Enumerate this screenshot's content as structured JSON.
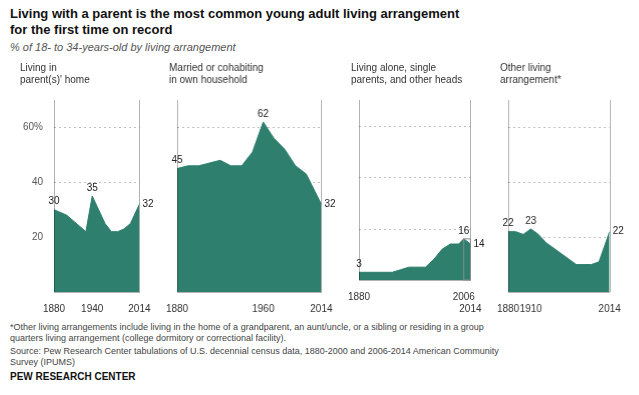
{
  "title": "Living with a parent is the most common young adult living arrangement\nfor the first time on record",
  "subtitle": "% of 18- to 34-years-old by living arrangement",
  "annotations": [
    "*Other living arrangements include living in the home of a grandparent, an aunt/uncle, or a sibling or residing in a group\nquarters living arrangement (college dormitory or correctional facility).",
    "Source: Pew Research Center tabulations of U.S. decennial census data, 1880-2000 and 2006-2014 American Community\nSurvey (IPUMS)",
    "PEW RESEARCH CENTER"
  ],
  "chart_data": [
    {
      "type": "area",
      "title": "Living in\nparent(s)' home",
      "color": "#2e7f6e",
      "grid": true,
      "x": [
        1880,
        1900,
        1910,
        1920,
        1930,
        1940,
        1950,
        1960,
        1970,
        1980,
        1990,
        2000,
        2014
      ],
      "values": [
        30,
        28,
        26,
        24,
        22,
        35,
        30,
        25,
        22,
        22,
        23,
        25,
        32
      ],
      "value_labels": [
        "30",
        null,
        null,
        null,
        null,
        "35",
        null,
        null,
        null,
        null,
        null,
        null,
        "32"
      ],
      "xlim": [
        1880,
        2014
      ],
      "xticks": [
        1880,
        1940,
        2014
      ],
      "ylim": [
        0,
        70
      ],
      "yticks": [
        20,
        40,
        {
          "value": 60,
          "label": "60%"
        }
      ]
    },
    {
      "type": "area",
      "title": "Married or cohabiting\nin own household",
      "color": "#2e7f6e",
      "grid": true,
      "x": [
        1880,
        1890,
        1900,
        1910,
        1920,
        1930,
        1940,
        1950,
        1960,
        1970,
        1980,
        1990,
        2000,
        2014
      ],
      "values": [
        45,
        46,
        46,
        47,
        48,
        46,
        46,
        51,
        62,
        56,
        52,
        46,
        43,
        32
      ],
      "value_labels": [
        "45",
        null,
        null,
        null,
        null,
        null,
        null,
        null,
        "62",
        null,
        null,
        null,
        null,
        "32"
      ],
      "xlim": [
        1880,
        2014
      ],
      "xticks": [
        1880,
        1960,
        2014
      ],
      "ylim": [
        0,
        70
      ],
      "yticks": [
        20,
        40,
        {
          "value": 60,
          "label": "60%"
        }
      ],
      "tick_labels": "x"
    },
    {
      "type": "area",
      "title": "Living alone, single\nparents, and other heads",
      "color": "#2e7f6e",
      "grid": true,
      "x": [
        1880,
        1890,
        1900,
        1910,
        1920,
        1930,
        1940,
        1950,
        1960,
        1970,
        1980,
        1990,
        2000,
        2006,
        2014
      ],
      "values": [
        3,
        3,
        3,
        3,
        3,
        4,
        5,
        5,
        5,
        8,
        12,
        14,
        14,
        16,
        14
      ],
      "value_labels": [
        "3",
        null,
        null,
        null,
        null,
        null,
        null,
        null,
        null,
        null,
        null,
        null,
        null,
        "16",
        "14"
      ],
      "bracket": {
        "x0": 2006,
        "x1": 2014,
        "y": 16
      },
      "xlim": [
        1880,
        2014
      ],
      "xticks": [
        1880,
        2006,
        2014
      ],
      "ylim": [
        0,
        70
      ],
      "yticks": [
        20,
        40,
        {
          "value": 60,
          "label": "60%"
        }
      ],
      "tick_labels": "x"
    },
    {
      "type": "area",
      "title": "Other living\narrangement*",
      "color": "#2e7f6e",
      "grid": true,
      "x": [
        1880,
        1890,
        1900,
        1910,
        1920,
        1930,
        1940,
        1950,
        1960,
        1970,
        1980,
        1990,
        2000,
        2014
      ],
      "values": [
        22,
        22,
        21,
        23,
        21,
        18,
        16,
        14,
        12,
        10,
        10,
        10,
        11,
        22
      ],
      "value_labels": [
        "22",
        null,
        null,
        "23",
        null,
        null,
        null,
        null,
        null,
        null,
        null,
        null,
        null,
        "22"
      ],
      "xlim": [
        1880,
        2014
      ],
      "xticks": [
        1880,
        1910,
        2014
      ],
      "ylim": [
        0,
        70
      ],
      "yticks": [
        20,
        40,
        {
          "value": 60,
          "label": "60%"
        }
      ],
      "tick_labels": "x"
    }
  ]
}
